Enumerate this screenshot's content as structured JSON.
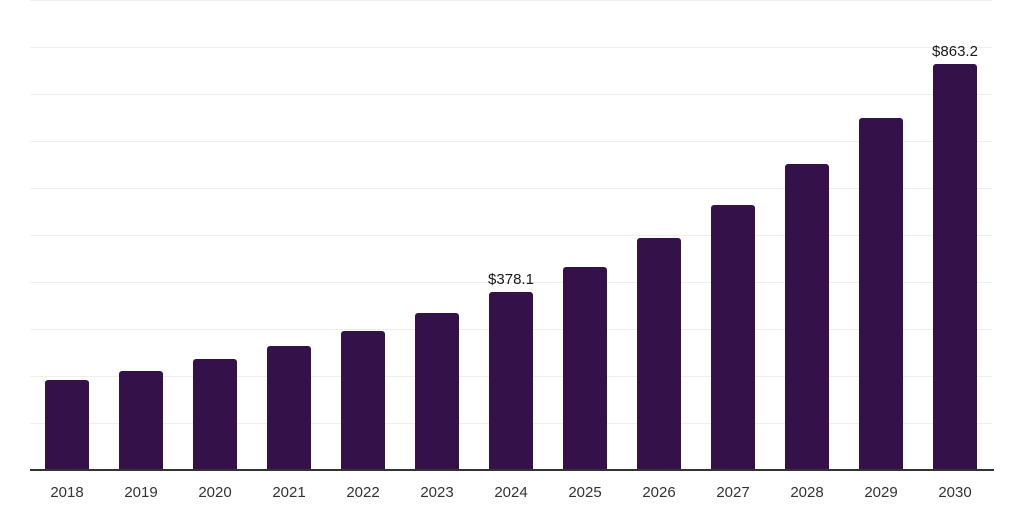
{
  "chart_data": {
    "type": "bar",
    "title": "",
    "xlabel": "",
    "ylabel": "",
    "categories": [
      "2018",
      "2019",
      "2020",
      "2021",
      "2022",
      "2023",
      "2024",
      "2025",
      "2026",
      "2027",
      "2028",
      "2029",
      "2030"
    ],
    "values": [
      190.5,
      209.8,
      235.4,
      263.9,
      295.3,
      334.5,
      378.1,
      432.9,
      493.7,
      563.5,
      651.2,
      748.4,
      863.2
    ],
    "data_labels": [
      {
        "category": "2024",
        "text": "$378.1"
      },
      {
        "category": "2030",
        "text": "$863.2"
      }
    ],
    "ylim": [
      0,
      1000
    ],
    "gridline_step": 100,
    "grid": "horizontal",
    "legend": "none",
    "y_tick_labels_shown": false,
    "colors": {
      "bar": "#341249",
      "axis_line": "#333333",
      "gridline": "#efefef",
      "tick_label": "#333333",
      "value_label": "#1a1a1a",
      "background": "#ffffff"
    }
  }
}
